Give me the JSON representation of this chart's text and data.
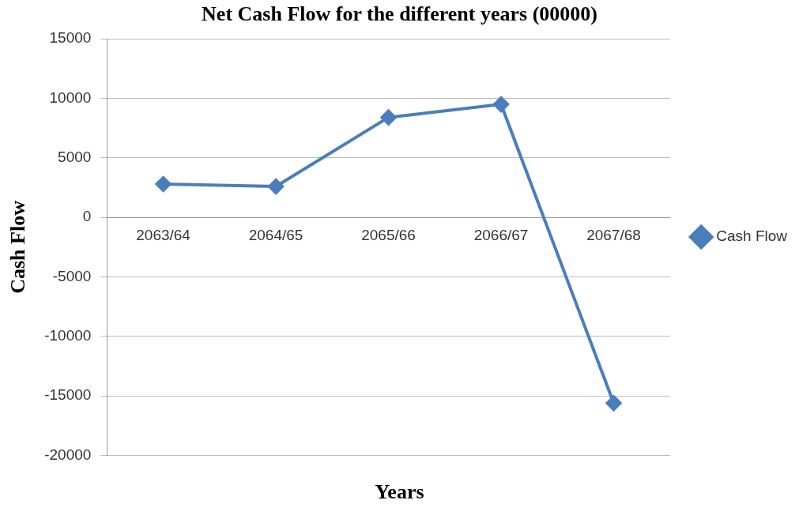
{
  "chart_data": {
    "type": "line",
    "title": "Net Cash Flow for the different years (00000)",
    "xlabel": "Years",
    "ylabel": "Cash Flow",
    "categories": [
      "2063/64",
      "2064/65",
      "2065/66",
      "2066/67",
      "2067/68"
    ],
    "series": [
      {
        "name": "Cash Flow",
        "color": "#4a7ebb",
        "values": [
          2800,
          2600,
          8400,
          9500,
          -15600
        ]
      }
    ],
    "ylim": [
      -20000,
      15000
    ],
    "yticks": [
      -20000,
      -15000,
      -10000,
      -5000,
      0,
      5000,
      10000,
      15000
    ],
    "grid": "y",
    "legend": "right",
    "marker": "diamond",
    "line_style": "solid"
  }
}
